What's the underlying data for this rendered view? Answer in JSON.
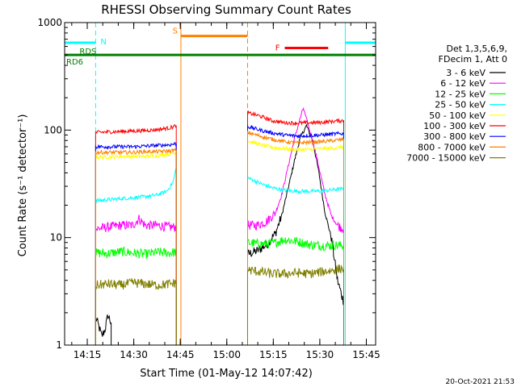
{
  "chart_data": {
    "type": "line",
    "title": "RHESSI Observing Summary Count Rates",
    "xlabel": "Start Time (01-May-12 14:07:42)",
    "ylabel": "Count Rate (s⁻¹ detector⁻¹)",
    "yscale": "log",
    "xlim_minutes_after_start": [
      0,
      100.3
    ],
    "ylim": [
      1,
      1000
    ],
    "x_ticks": [
      "14:15",
      "14:30",
      "14:45",
      "15:00",
      "15:15",
      "15:30",
      "15:45"
    ],
    "y_ticks": [
      "1",
      "10",
      "100",
      "1000"
    ],
    "legend_header": [
      "Det 1,3,5,6,9,",
      "FDecim 1, Att 0"
    ],
    "footer": "20-Oct-2021 21:53",
    "series": [
      {
        "name": "3 - 6 keV",
        "color": "#000000",
        "segments": [
          {
            "x": [
              10,
              11,
              12,
              13,
              14,
              15
            ],
            "y": [
              1.8,
              1.5,
              1.2,
              1.4,
              1.9,
              1.6
            ]
          },
          {
            "x": [
              59,
              62,
              65,
              68,
              70,
              72,
              74,
              76,
              78,
              80,
              82,
              84,
              86,
              88,
              90
            ],
            "y": [
              7,
              7.5,
              8.5,
              11,
              16,
              28,
              50,
              85,
              110,
              80,
              40,
              17,
              10,
              4,
              2.5
            ]
          }
        ]
      },
      {
        "name": "6 - 12 keV",
        "color": "#ff00ff",
        "segments": [
          {
            "x": [
              10,
              14,
              18,
              22,
              24,
              26,
              30,
              34,
              36
            ],
            "y": [
              12,
              12.5,
              13,
              13,
              15,
              13,
              13,
              12.5,
              12.5
            ]
          },
          {
            "x": [
              59,
              62,
              65,
              68,
              70,
              72,
              74,
              76,
              77,
              78,
              80,
              82,
              84,
              86,
              88,
              90
            ],
            "y": [
              13,
              13,
              14,
              17,
              25,
              45,
              80,
              130,
              160,
              125,
              80,
              45,
              25,
              16,
              13,
              12
            ]
          }
        ]
      },
      {
        "name": "12 - 25 keV",
        "color": "#00ff00",
        "segments": [
          {
            "x": [
              10,
              14,
              18,
              22,
              26,
              30,
              34,
              36
            ],
            "y": [
              7.2,
              7.1,
              7.4,
              7.2,
              7.0,
              7.3,
              7.2,
              7.4
            ]
          },
          {
            "x": [
              59,
              63,
              67,
              71,
              75,
              79,
              83,
              87,
              90
            ],
            "y": [
              9,
              8.7,
              8.8,
              9.6,
              9.2,
              8.6,
              8.4,
              8.5,
              8.4
            ]
          }
        ]
      },
      {
        "name": "25 - 50 keV",
        "color": "#00ffff",
        "segments": [
          {
            "x": [
              10,
              14,
              18,
              22,
              26,
              30,
              33,
              35,
              36
            ],
            "y": [
              22,
              22.5,
              23,
              23.5,
              24,
              25,
              27,
              33,
              45
            ]
          },
          {
            "x": [
              59,
              63,
              67,
              71,
              75,
              79,
              83,
              87,
              90
            ],
            "y": [
              36,
              32,
              29,
              27.5,
              27,
              27,
              27,
              28,
              28.5
            ]
          }
        ]
      },
      {
        "name": "50 - 100 keV",
        "color": "#ffff00",
        "segments": [
          {
            "x": [
              10,
              14,
              18,
              22,
              26,
              30,
              34,
              36
            ],
            "y": [
              56,
              56,
              57,
              57,
              57,
              58,
              60,
              62
            ]
          },
          {
            "x": [
              59,
              63,
              67,
              71,
              75,
              79,
              83,
              87,
              90
            ],
            "y": [
              80,
              73,
              69,
              67,
              66,
              66,
              67,
              68,
              70
            ]
          }
        ]
      },
      {
        "name": "100 - 300 keV",
        "color": "#ff0000",
        "segments": [
          {
            "x": [
              10,
              14,
              18,
              22,
              26,
              30,
              34,
              36
            ],
            "y": [
              95,
              96,
              97,
              98,
              99,
              101,
              105,
              110
            ]
          },
          {
            "x": [
              59,
              63,
              67,
              71,
              75,
              79,
              83,
              87,
              90
            ],
            "y": [
              145,
              135,
              122,
              117,
              116,
              117,
              118,
              121,
              123
            ]
          }
        ]
      },
      {
        "name": "300 - 800 keV",
        "color": "#0000ff",
        "segments": [
          {
            "x": [
              10,
              14,
              18,
              22,
              26,
              30,
              34,
              36
            ],
            "y": [
              70,
              70,
              70,
              70,
              71,
              72,
              73,
              75
            ]
          },
          {
            "x": [
              59,
              63,
              67,
              71,
              75,
              79,
              83,
              87,
              90
            ],
            "y": [
              108,
              100,
              94,
              90,
              88,
              89,
              90,
              92,
              93
            ]
          }
        ]
      },
      {
        "name": "800 - 7000 keV",
        "color": "#ff8000",
        "segments": [
          {
            "x": [
              10,
              14,
              18,
              22,
              26,
              30,
              34,
              36
            ],
            "y": [
              62,
              62,
              62,
              62,
              63,
              63,
              64,
              65
            ]
          },
          {
            "x": [
              59,
              63,
              67,
              71,
              75,
              79,
              83,
              87,
              90
            ],
            "y": [
              95,
              88,
              82,
              78,
              76,
              77,
              78,
              80,
              82
            ]
          }
        ]
      },
      {
        "name": "7000 - 15000 keV",
        "color": "#808000",
        "segments": [
          {
            "x": [
              10,
              14,
              18,
              22,
              26,
              30,
              34,
              36
            ],
            "y": [
              3.6,
              3.7,
              3.6,
              3.8,
              3.7,
              3.6,
              3.7,
              3.8
            ]
          },
          {
            "x": [
              59,
              63,
              67,
              71,
              75,
              79,
              83,
              87,
              90
            ],
            "y": [
              5.0,
              4.8,
              4.6,
              4.6,
              4.7,
              4.6,
              4.8,
              5.0,
              5.2
            ]
          }
        ]
      }
    ],
    "markers": [
      {
        "label": "N",
        "color": "#00ffff",
        "bars": [
          {
            "x": [
              0,
              10
            ],
            "y": 650
          },
          {
            "x": [
              90.5,
              100.3
            ],
            "y": 650
          }
        ],
        "dashed_verticals": [
          10,
          100.3
        ],
        "solid_verticals": [
          90.5
        ]
      },
      {
        "label": "S",
        "color": "#ff8000",
        "bars": [
          {
            "x": [
              37.5,
              59
            ],
            "y": 750
          }
        ],
        "solid_verticals": [
          37.5
        ],
        "dashed_verticals": [
          59
        ]
      },
      {
        "label": "F",
        "color": "#ff0000",
        "bars": [
          {
            "x": [
              71,
              85
            ],
            "y": 580
          }
        ]
      },
      {
        "label": "RDS",
        "color": "#008000",
        "bars": [
          {
            "x": [
              0,
              100.3
            ],
            "y": 500
          }
        ]
      },
      {
        "label": "RD6",
        "color": "#008000"
      }
    ]
  }
}
